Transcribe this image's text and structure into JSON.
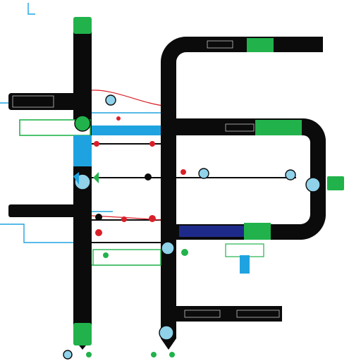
{
  "diagram": {
    "description_visible_text": "none legible",
    "palette": {
      "track": "#0b0b0b",
      "green": "#22b24c",
      "blue": "#1fa3e0",
      "navy": "#1e2a8a",
      "red": "#d9202a",
      "white": "#ffffff",
      "light_blue": "#8fd2ea"
    },
    "icons": [
      "node-dot-icon",
      "globe-icon",
      "connector-dot-icon"
    ]
  }
}
